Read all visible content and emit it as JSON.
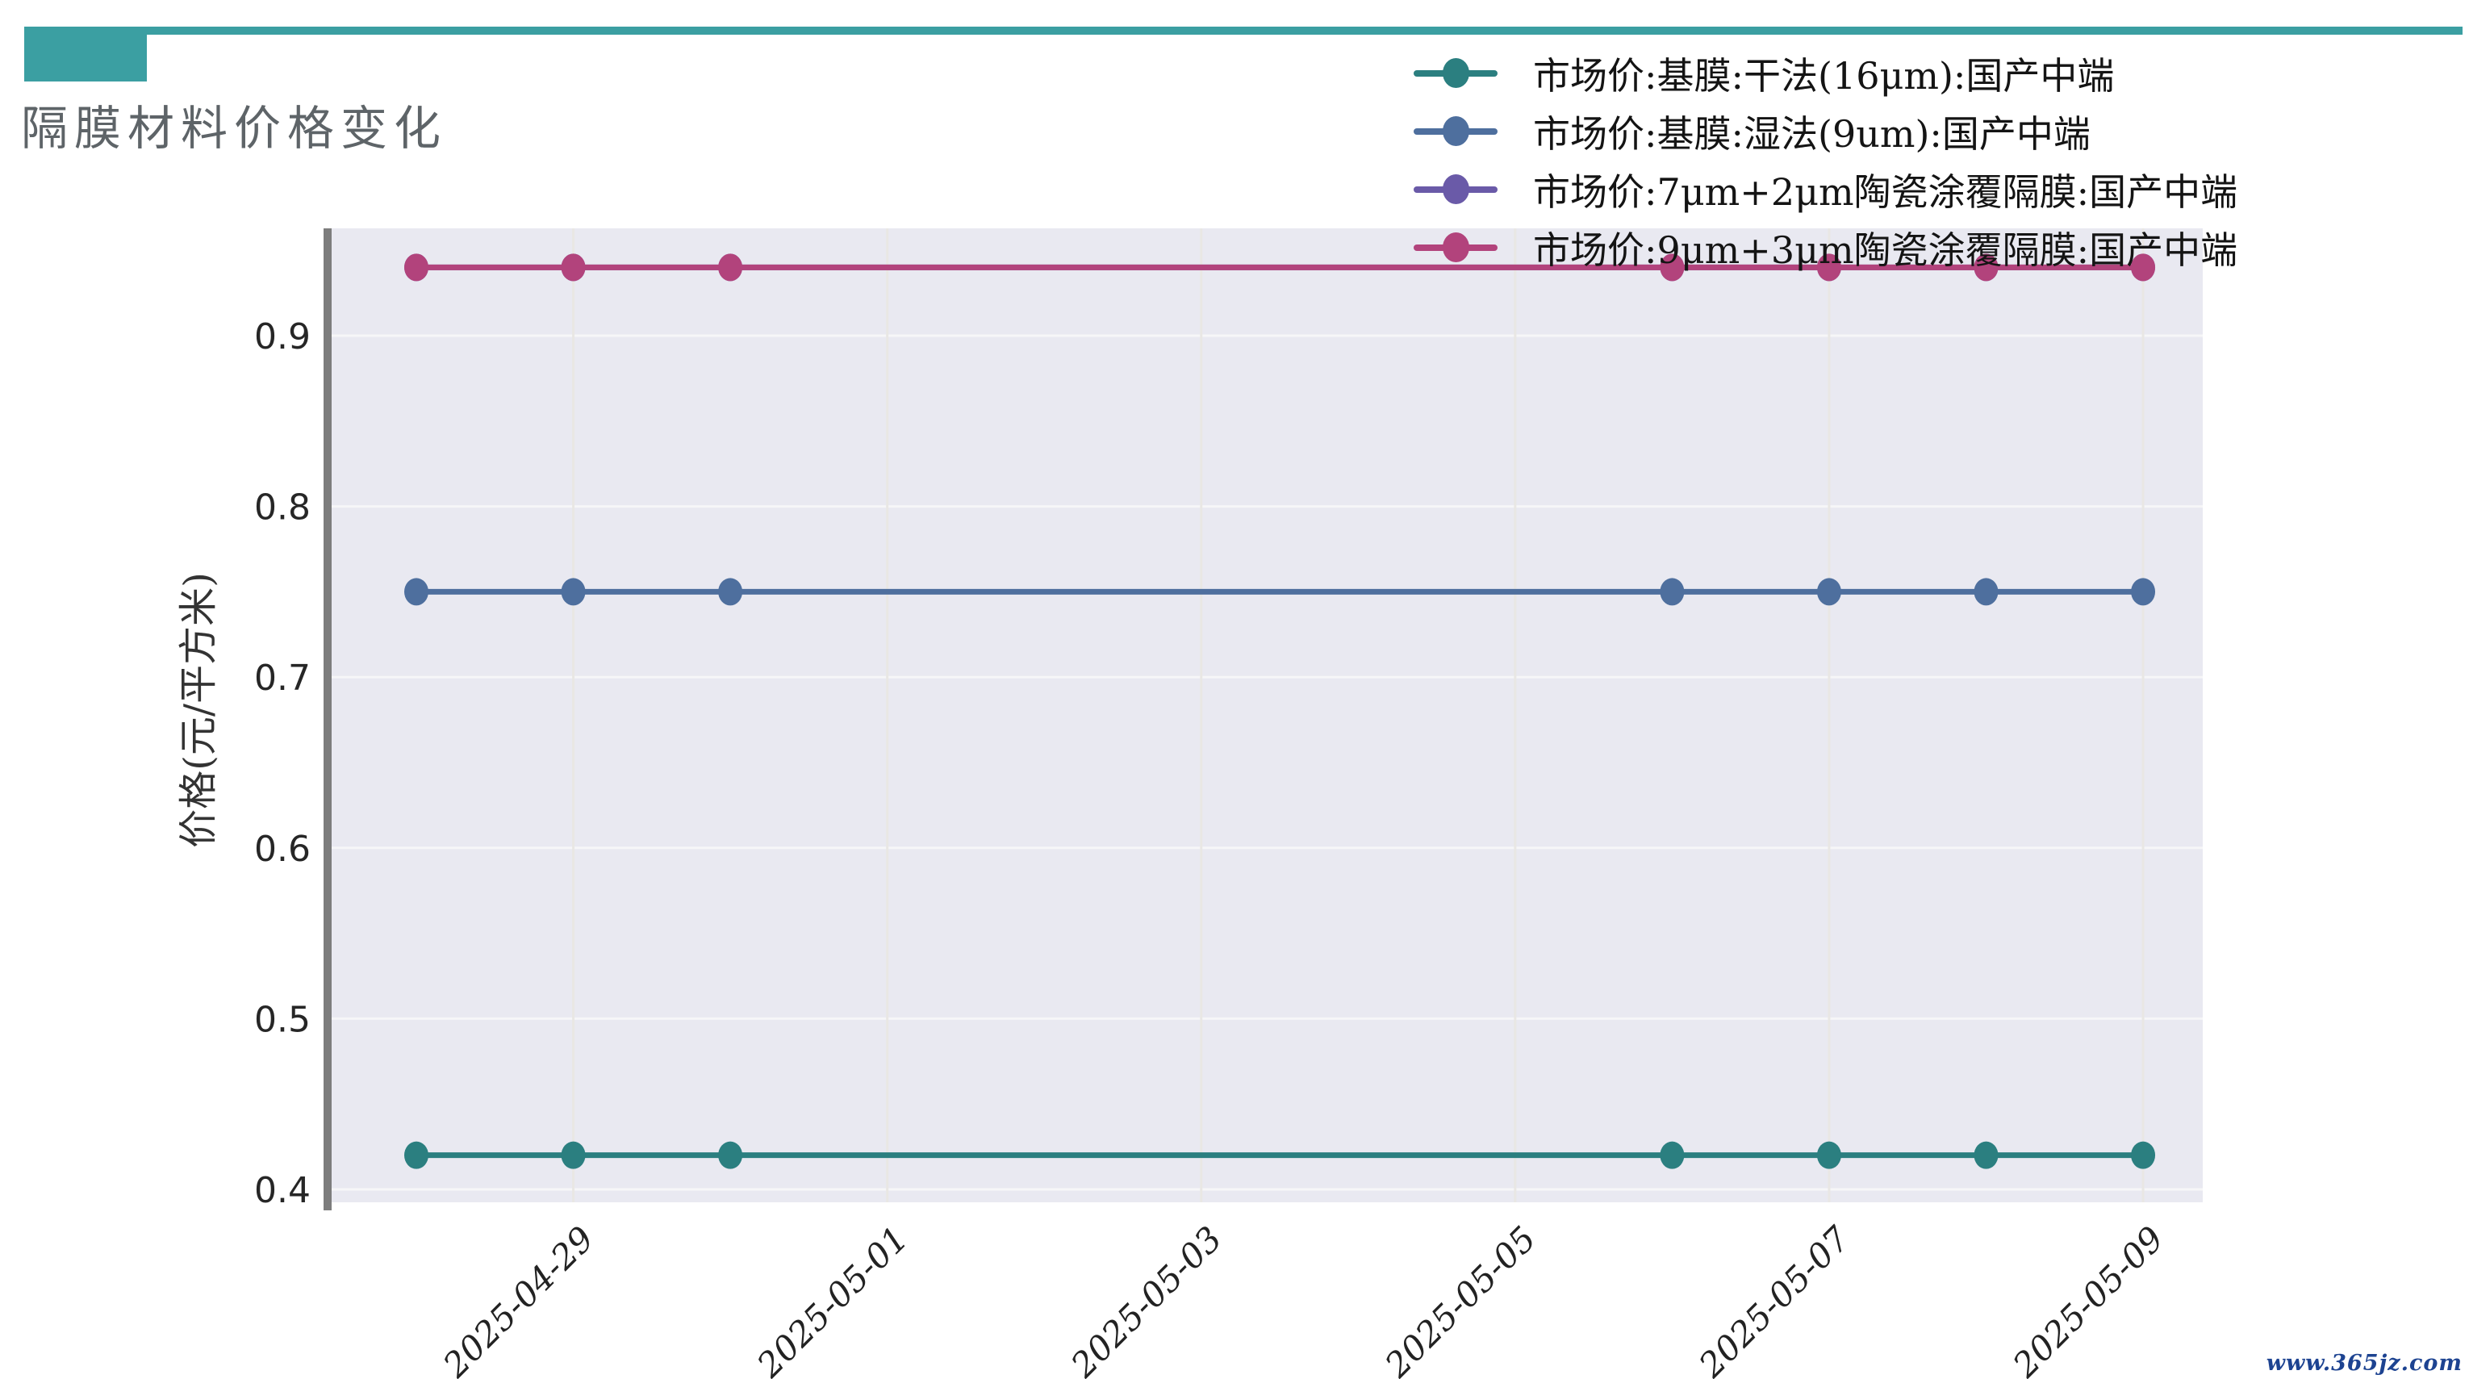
{
  "header": {
    "title": "隔膜材料价格变化",
    "accent_color": "#3b9fa2"
  },
  "watermark": {
    "text": "www.365jz.com",
    "color": "#1d4391"
  },
  "chart_data": {
    "type": "line",
    "title": "隔膜材料价格变化",
    "xlabel": "",
    "ylabel": "价格(元/平方米)",
    "x_dates": [
      "2025-04-28",
      "2025-04-29",
      "2025-04-30",
      "2025-05-06",
      "2025-05-07",
      "2025-05-08",
      "2025-05-09"
    ],
    "x_tick_labels": [
      "2025-04-29",
      "2025-05-01",
      "2025-05-03",
      "2025-05-05",
      "2025-05-07",
      "2025-05-09"
    ],
    "y_ticks": [
      "0.4",
      "0.5",
      "0.6",
      "0.7",
      "0.8",
      "0.9"
    ],
    "ylim": [
      0.392,
      0.963
    ],
    "grid": true,
    "legend_position": "top-right",
    "plot_background": "#e9e9f1",
    "h_gridline_color": "#f6f6f8",
    "v_gridline_color": "#e9e7e4",
    "axis_spine_color": "#7d7d7d",
    "tick_label_color": "#262626",
    "series": [
      {
        "name": "市场价:基膜:干法(16μm):国产中端",
        "color": "#2b7f80",
        "values": [
          0.42,
          0.42,
          0.42,
          0.42,
          0.42,
          0.42,
          0.42
        ]
      },
      {
        "name": "市场价:基膜:湿法(9um):国产中端",
        "color": "#4e6f9e",
        "values": [
          0.75,
          0.75,
          0.75,
          0.75,
          0.75,
          0.75,
          0.75
        ]
      },
      {
        "name": "市场价:7μm+2μm陶瓷涂覆隔膜:国产中端",
        "color": "#6a5aa8",
        "values": [
          0.94,
          0.94,
          0.94,
          0.94,
          0.94,
          0.94,
          0.94
        ],
        "note": "occluded beneath 9μm+3μm series"
      },
      {
        "name": "市场价:9μm+3μm陶瓷涂覆隔膜:国产中端",
        "color": "#b2437c",
        "values": [
          0.94,
          0.94,
          0.94,
          0.94,
          0.94,
          0.94,
          0.94
        ]
      }
    ]
  }
}
